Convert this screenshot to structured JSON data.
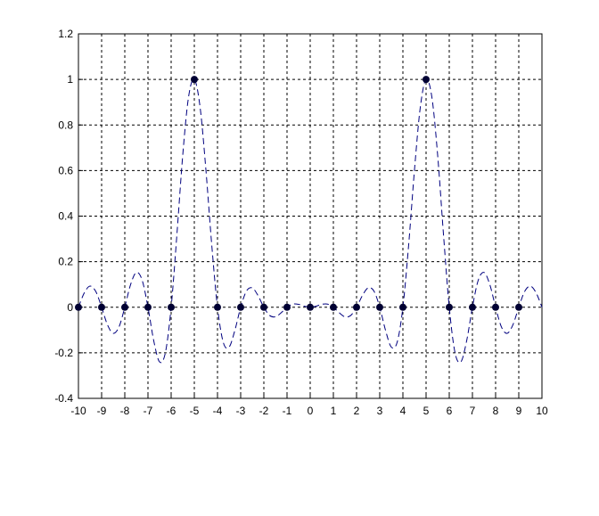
{
  "chart_data": {
    "type": "line",
    "series": [
      {
        "color": "#00007f",
        "linestyle": "dashed",
        "x": [
          -10,
          -9.75,
          -9.5,
          -9.25,
          -9,
          -8.75,
          -8.5,
          -8.25,
          -8,
          -7.75,
          -7.5,
          -7.25,
          -7,
          -6.75,
          -6.5,
          -6.25,
          -6,
          -5.75,
          -5.5,
          -5.25,
          -5,
          -4.75,
          -4.5,
          -4.25,
          -4,
          -3.75,
          -3.5,
          -3.25,
          -3,
          -2.75,
          -2.5,
          -2.25,
          -2,
          -1.75,
          -1.5,
          -1.25,
          -1,
          -0.75,
          -0.5,
          -0.25,
          0,
          0.25,
          0.5,
          0.75,
          1,
          1.25,
          1.5,
          1.75,
          2,
          2.25,
          2.5,
          2.75,
          3,
          3.25,
          3.5,
          3.75,
          4,
          4.25,
          4.5,
          4.75,
          5,
          5.25,
          5.5,
          5.75,
          6,
          6.25,
          6.5,
          6.75,
          7,
          7.25,
          7.5,
          7.75,
          8,
          8.25,
          8.5,
          8.75,
          9,
          9.25,
          9.5,
          9.75,
          10
        ],
        "values": [
          0,
          0.06265,
          0.09269,
          0.06875,
          0,
          -0.07639,
          -0.11453,
          -0.08624,
          0,
          0.0995,
          0.15279,
          0.11841,
          0,
          -0.14777,
          -0.23989,
          -0.20007,
          0,
          0.32104,
          0.66694,
          0.92228,
          1,
          0.87723,
          0.60311,
          0.27577,
          0,
          -0.15434,
          -0.17476,
          -0.10134,
          0,
          0.07099,
          0.08488,
          0.0508,
          0,
          -0.03591,
          -0.04198,
          -0.02401,
          0,
          0.01382,
          0.01286,
          0.00451,
          0,
          0.00451,
          0.01286,
          0.01382,
          0,
          -0.02401,
          -0.04198,
          -0.03591,
          0,
          0.0508,
          0.08488,
          0.07099,
          0,
          -0.10134,
          -0.17476,
          -0.15434,
          0,
          0.27577,
          0.60311,
          0.87723,
          1,
          0.92228,
          0.66694,
          0.32104,
          0,
          -0.20007,
          -0.23989,
          -0.14777,
          0,
          0.11841,
          0.15279,
          0.0995,
          0,
          -0.08624,
          -0.11453,
          -0.07639,
          0,
          0.06875,
          0.09269,
          0.06265,
          0
        ]
      },
      {
        "color": "#000033",
        "linestyle": "none",
        "marker": "circle",
        "x": [
          -10,
          -9,
          -8,
          -7,
          -6,
          -5,
          -4,
          -3,
          -2,
          -1,
          0,
          1,
          2,
          3,
          4,
          5,
          6,
          7,
          8,
          9
        ],
        "values": [
          0,
          0,
          0,
          0,
          0,
          1,
          0,
          0,
          0,
          0,
          0,
          0,
          0,
          0,
          0,
          1,
          0,
          0,
          0,
          0
        ]
      }
    ],
    "xlim": [
      -10,
      10
    ],
    "xticks": [
      -10,
      -9,
      -8,
      -7,
      -6,
      -5,
      -4,
      -3,
      -2,
      -1,
      0,
      1,
      2,
      3,
      4,
      5,
      6,
      7,
      8,
      9,
      10
    ],
    "ylim": [
      -0.4,
      1.2
    ],
    "yticks": [
      -0.4,
      -0.2,
      0,
      0.2,
      0.4,
      0.6,
      0.8,
      1,
      1.2
    ],
    "grid": true
  }
}
